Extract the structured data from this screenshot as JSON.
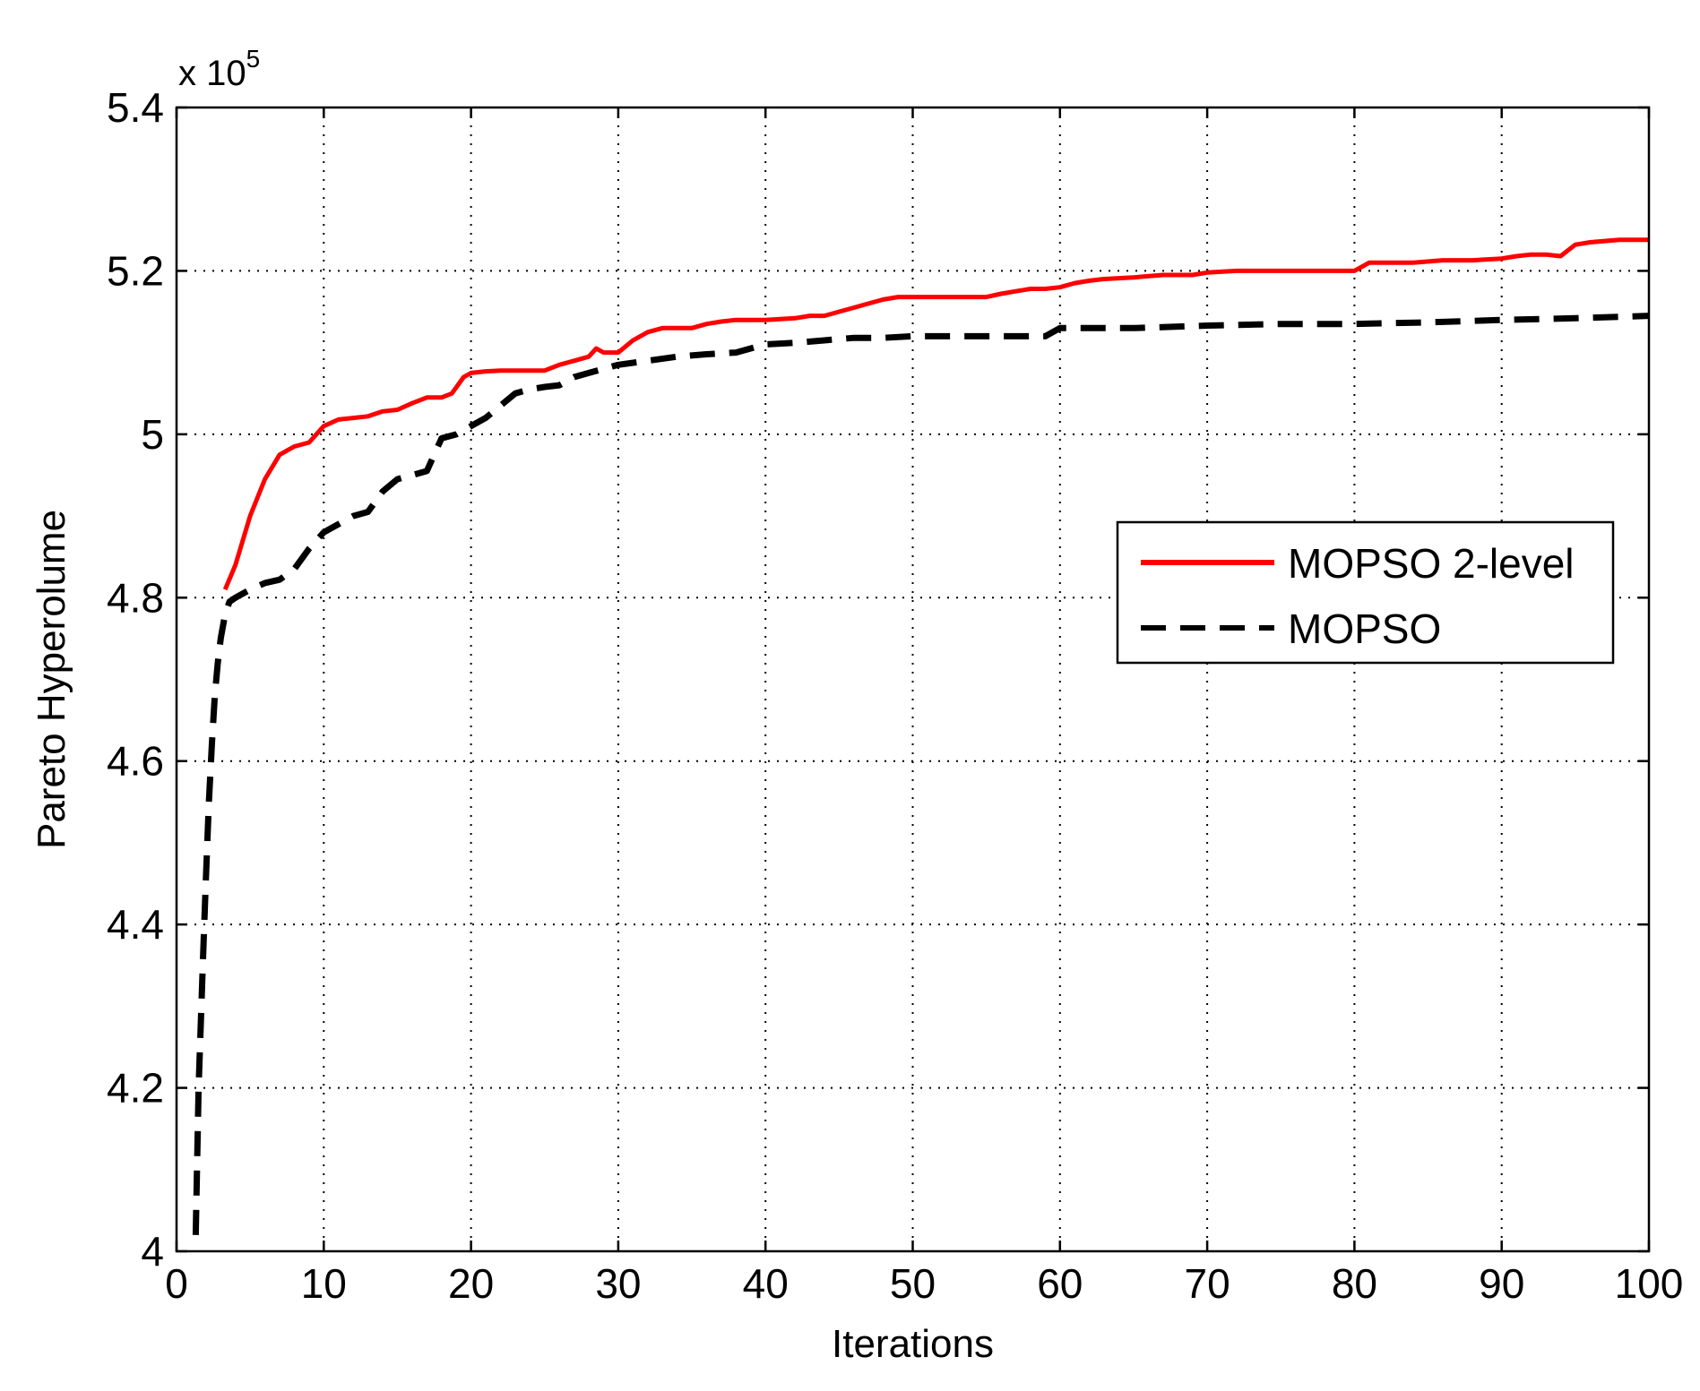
{
  "chart_data": {
    "type": "line",
    "xlabel": "Iterations",
    "ylabel": "Pareto Hyperolume",
    "y_multiplier": {
      "base": "x 10",
      "exponent": "5"
    },
    "xlim": [
      0,
      100
    ],
    "ylim": [
      4.0,
      5.4
    ],
    "xticks": [
      0,
      10,
      20,
      30,
      40,
      50,
      60,
      70,
      80,
      90,
      100
    ],
    "yticks": [
      4,
      4.2,
      4.4,
      4.6,
      4.8,
      5,
      5.2,
      5.4
    ],
    "ytick_labels": [
      "4",
      "4.2",
      "4.4",
      "4.6",
      "4.8",
      "5",
      "5.2",
      "5.4"
    ],
    "grid": true,
    "legend_position": "right, middle",
    "series": [
      {
        "name": "MOPSO 2-level",
        "color": "#ff0000",
        "style": "solid",
        "x": [
          3.3,
          4,
          5,
          6,
          7,
          7.5,
          8,
          9,
          10,
          11,
          12,
          13,
          14,
          15,
          16,
          17,
          18,
          18.7,
          19.5,
          20,
          21,
          22,
          23,
          24,
          25,
          26,
          27,
          28,
          28.5,
          29,
          30,
          31,
          32,
          33,
          34,
          35,
          36,
          37,
          38,
          40,
          42,
          43,
          44,
          45,
          46,
          47,
          48,
          49,
          50,
          52,
          54,
          55,
          56,
          57,
          58,
          59,
          60,
          61,
          62,
          63,
          65,
          67,
          69,
          70,
          72,
          75,
          78,
          80,
          81,
          82,
          84,
          86,
          88,
          90,
          91,
          92,
          93,
          94,
          95,
          96,
          98,
          100
        ],
        "y": [
          4.81,
          4.84,
          4.9,
          4.945,
          4.975,
          4.98,
          4.985,
          4.99,
          5.01,
          5.018,
          5.02,
          5.022,
          5.028,
          5.03,
          5.038,
          5.045,
          5.045,
          5.05,
          5.07,
          5.075,
          5.077,
          5.078,
          5.078,
          5.078,
          5.078,
          5.085,
          5.09,
          5.095,
          5.105,
          5.1,
          5.1,
          5.115,
          5.125,
          5.13,
          5.13,
          5.13,
          5.135,
          5.138,
          5.14,
          5.14,
          5.142,
          5.145,
          5.145,
          5.15,
          5.155,
          5.16,
          5.165,
          5.168,
          5.168,
          5.168,
          5.168,
          5.168,
          5.172,
          5.175,
          5.178,
          5.178,
          5.18,
          5.185,
          5.188,
          5.19,
          5.192,
          5.195,
          5.195,
          5.198,
          5.2,
          5.2,
          5.2,
          5.2,
          5.21,
          5.21,
          5.21,
          5.213,
          5.213,
          5.215,
          5.218,
          5.22,
          5.22,
          5.218,
          5.232,
          5.235,
          5.238,
          5.238
        ]
      },
      {
        "name": "MOPSO",
        "color": "#000000",
        "style": "dashed",
        "x": [
          1.3,
          1.5,
          1.8,
          2.0,
          2.2,
          2.4,
          2.6,
          2.8,
          3.0,
          3.3,
          3.6,
          4,
          5,
          6,
          7,
          8,
          9,
          10,
          11,
          12,
          13,
          14,
          15,
          16,
          17,
          18,
          19,
          20,
          21,
          22,
          23,
          24,
          25,
          26,
          27,
          28,
          30,
          32,
          34,
          36,
          38,
          40,
          42,
          44,
          46,
          48,
          50,
          55,
          59,
          60,
          62,
          65,
          70,
          75,
          80,
          85,
          90,
          95,
          100
        ],
        "y": [
          4.02,
          4.2,
          4.36,
          4.46,
          4.55,
          4.62,
          4.68,
          4.72,
          4.75,
          4.78,
          4.795,
          4.8,
          4.81,
          4.818,
          4.822,
          4.835,
          4.86,
          4.88,
          4.89,
          4.9,
          4.905,
          4.93,
          4.945,
          4.95,
          4.955,
          4.995,
          5.0,
          5.01,
          5.02,
          5.035,
          5.05,
          5.055,
          5.058,
          5.06,
          5.07,
          5.075,
          5.085,
          5.09,
          5.095,
          5.098,
          5.1,
          5.11,
          5.112,
          5.115,
          5.118,
          5.118,
          5.12,
          5.12,
          5.12,
          5.13,
          5.13,
          5.13,
          5.133,
          5.135,
          5.135,
          5.137,
          5.14,
          5.142,
          5.145
        ]
      }
    ]
  }
}
